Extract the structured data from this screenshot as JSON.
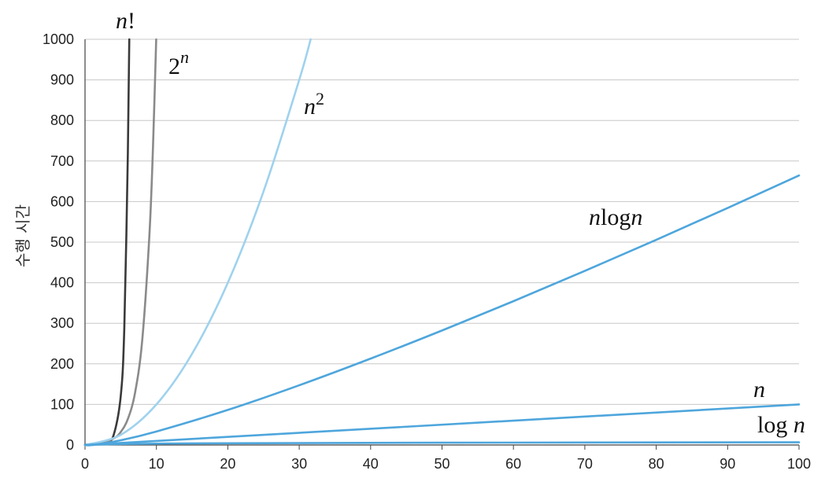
{
  "chart_data": {
    "type": "line",
    "title": "",
    "xlabel": "",
    "ylabel": "수행 시간",
    "xlim": [
      0,
      100
    ],
    "ylim": [
      0,
      1000
    ],
    "xticks": [
      0,
      10,
      20,
      30,
      40,
      50,
      60,
      70,
      80,
      90,
      100
    ],
    "yticks": [
      0,
      100,
      200,
      300,
      400,
      500,
      600,
      700,
      800,
      900,
      1000
    ],
    "grid": "horizontal",
    "series": [
      {
        "name": "n!",
        "color": "#3a3a3a",
        "x": [
          0,
          1,
          2,
          3,
          4,
          5,
          5.5,
          6,
          6.2
        ],
        "y": [
          1,
          1,
          2,
          6,
          24,
          120,
          287,
          720,
          1000
        ]
      },
      {
        "name": "2^n",
        "color": "#8a8a8a",
        "x": [
          0,
          2,
          4,
          5,
          6,
          7,
          8,
          9,
          9.5,
          9.97
        ],
        "y": [
          1,
          4,
          16,
          32,
          64,
          128,
          256,
          512,
          724,
          1000
        ]
      },
      {
        "name": "n^2",
        "color": "#9fd2ee",
        "x": [
          0,
          5,
          10,
          15,
          20,
          25,
          30,
          31.6
        ],
        "y": [
          0,
          25,
          100,
          225,
          400,
          625,
          900,
          1000
        ]
      },
      {
        "name": "n log n",
        "color": "#4ea6dc",
        "x": [
          0,
          1,
          5,
          10,
          20,
          30,
          40,
          50,
          60,
          70,
          80,
          90,
          100
        ],
        "y": [
          0,
          0,
          11.6,
          33.2,
          86.4,
          147.2,
          212.9,
          282.2,
          354.4,
          429.1,
          505.8,
          584.3,
          664.4
        ]
      },
      {
        "name": "n",
        "color": "#4ea6dc",
        "x": [
          0,
          100
        ],
        "y": [
          0,
          100
        ]
      },
      {
        "name": "log n",
        "color": "#4ea6dc",
        "x": [
          1,
          2,
          5,
          10,
          20,
          50,
          100
        ],
        "y": [
          0,
          1,
          2.32,
          3.32,
          4.32,
          5.64,
          6.64
        ]
      }
    ],
    "annotations": [
      {
        "series": "n!",
        "base": "n",
        "tail": "!",
        "style": "base-italic"
      },
      {
        "series": "2^n",
        "base": "2",
        "tail": "n",
        "style": "superscript-italic"
      },
      {
        "series": "n^2",
        "base": "n",
        "tail": "2",
        "style": "superscript"
      },
      {
        "series": "n log n",
        "base": "n",
        "mid": "log",
        "tail": "n",
        "style": "nlogn"
      },
      {
        "series": "n",
        "base": "n",
        "style": "italic"
      },
      {
        "series": "log n",
        "base": "log",
        "tail": "n",
        "style": "log"
      }
    ]
  }
}
